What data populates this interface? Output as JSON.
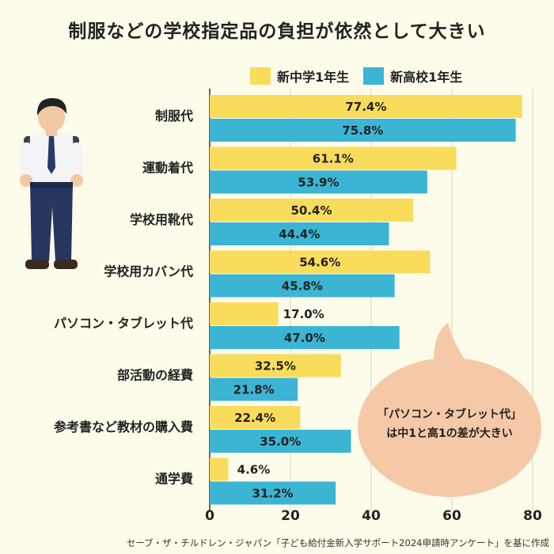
{
  "title": "制服などの学校指定品の負担が依然として大きい",
  "source": "セーブ・ザ・チルドレン・ジャパン「子ども給付金新入学サポート2024申請時アンケート」を基に作成",
  "callout": [
    "「パソコン・タブレット代」",
    "は中1と高1の差が大きい"
  ],
  "colors": {
    "junior": "#f9dc5c",
    "senior": "#3bb5d3",
    "callout": "#f5c9a8",
    "grid": "#d8d5c4"
  },
  "chart_data": {
    "type": "bar",
    "orientation": "horizontal",
    "categories": [
      "制服代",
      "運動着代",
      "学校用靴代",
      "学校用カバン代",
      "パソコン・タブレット代",
      "部活動の経費",
      "参考書など教材の購入費",
      "通学費"
    ],
    "series": [
      {
        "name": "新中学1年生",
        "values": [
          77.4,
          61.1,
          50.4,
          54.6,
          17.0,
          32.5,
          22.4,
          4.6
        ],
        "labels": [
          "77.4%",
          "61.1%",
          "50.4%",
          "54.6%",
          "17.0%",
          "32.5%",
          "22.4%",
          "4.6%"
        ]
      },
      {
        "name": "新高校1年生",
        "values": [
          75.8,
          53.9,
          44.4,
          45.8,
          47.0,
          21.8,
          35.0,
          31.2
        ],
        "labels": [
          "75.8%",
          "53.9%",
          "44.4%",
          "45.8%",
          "47.0%",
          "21.8%",
          "35.0%",
          "31.2%"
        ]
      }
    ],
    "xlim": [
      0,
      80
    ],
    "xticks": [
      "0",
      "20",
      "40",
      "60",
      "80"
    ],
    "grid": true,
    "legend_position": "top-right"
  }
}
